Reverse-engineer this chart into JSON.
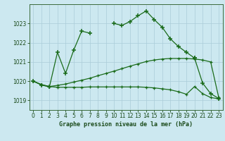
{
  "title": "Graphe pression niveau de la mer (hPa)",
  "background_color": "#cce8f0",
  "grid_color": "#aaccd8",
  "line_color": "#1a6b1a",
  "xlim": [
    -0.5,
    23.5
  ],
  "ylim": [
    1018.5,
    1024.0
  ],
  "yticks": [
    1019,
    1020,
    1021,
    1022,
    1023
  ],
  "xticks": [
    0,
    1,
    2,
    3,
    4,
    5,
    6,
    7,
    8,
    9,
    10,
    11,
    12,
    13,
    14,
    15,
    16,
    17,
    18,
    19,
    20,
    21,
    22,
    23
  ],
  "line1_segments": [
    {
      "x": [
        0,
        1,
        2,
        3,
        4,
        5,
        6,
        7
      ],
      "y": [
        1020.0,
        1019.8,
        1019.7,
        1021.5,
        1020.4,
        1021.6,
        1022.6,
        1022.5
      ]
    },
    {
      "x": [
        10,
        11,
        12,
        13,
        14,
        15,
        16,
        17,
        18,
        19,
        20
      ],
      "y": [
        1023.0,
        1022.9,
        1023.1,
        1023.4,
        1023.65,
        1023.2,
        1022.8,
        1022.2,
        1021.8,
        1021.5,
        1021.2
      ]
    },
    {
      "x": [
        20,
        21,
        22,
        23
      ],
      "y": [
        1021.2,
        1019.9,
        1019.35,
        1019.1
      ]
    }
  ],
  "line2_x": [
    0,
    1,
    2,
    3,
    4,
    5,
    6,
    7,
    8,
    9,
    10,
    11,
    12,
    13,
    14,
    15,
    16,
    17,
    18,
    19,
    20,
    21,
    22,
    23
  ],
  "line2_y": [
    1020.0,
    1019.82,
    1019.72,
    1019.78,
    1019.85,
    1019.95,
    1020.05,
    1020.15,
    1020.28,
    1020.4,
    1020.52,
    1020.65,
    1020.78,
    1020.9,
    1021.02,
    1021.1,
    1021.15,
    1021.18,
    1021.18,
    1021.18,
    1021.15,
    1021.1,
    1021.0,
    1019.15
  ],
  "line3_x": [
    0,
    1,
    2,
    3,
    4,
    5,
    6,
    7,
    8,
    9,
    10,
    11,
    12,
    13,
    14,
    15,
    16,
    17,
    18,
    19,
    20,
    21,
    22,
    23
  ],
  "line3_y": [
    1020.0,
    1019.82,
    1019.72,
    1019.68,
    1019.68,
    1019.68,
    1019.68,
    1019.7,
    1019.7,
    1019.7,
    1019.7,
    1019.7,
    1019.7,
    1019.7,
    1019.68,
    1019.65,
    1019.6,
    1019.55,
    1019.45,
    1019.32,
    1019.72,
    1019.35,
    1019.15,
    1019.08
  ]
}
